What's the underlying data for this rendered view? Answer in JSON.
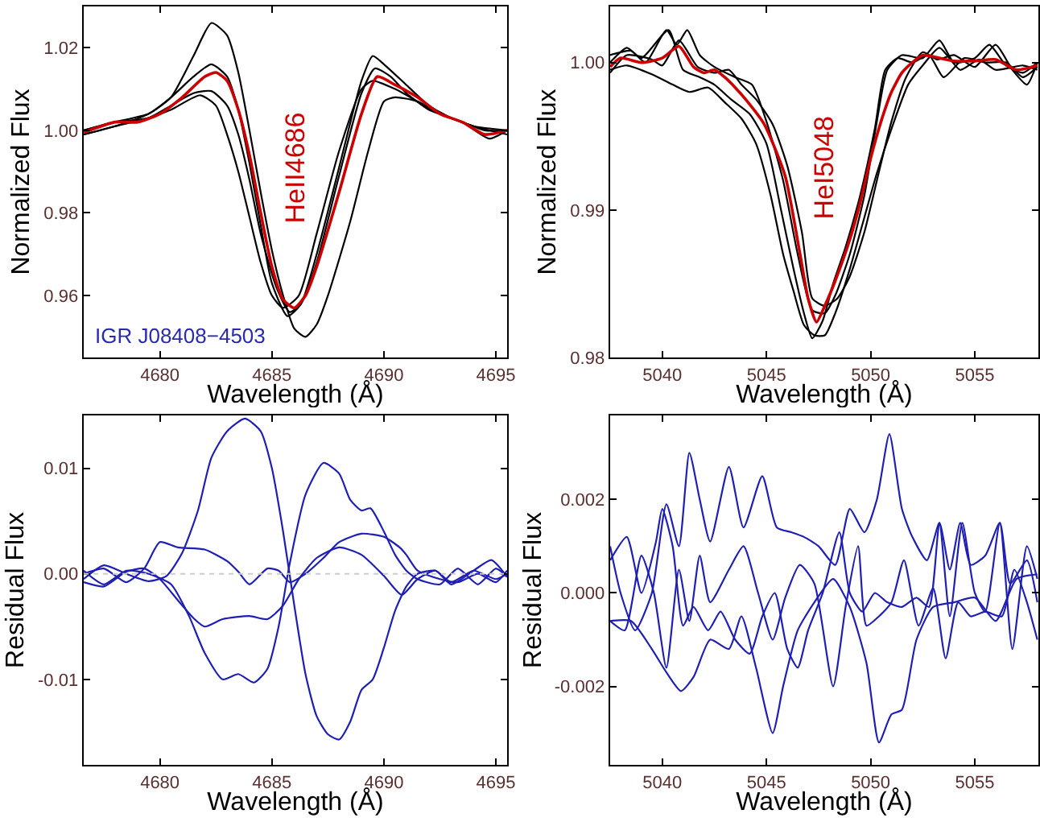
{
  "chart_data": [
    {
      "type": "line",
      "xlabel": "Wavelength (Å)",
      "ylabel": "Normalized Flux",
      "xlim": [
        4676.6,
        4695.5
      ],
      "ylim": [
        0.945,
        1.03
      ],
      "xticks": [
        4680,
        4685,
        4690,
        4695
      ],
      "yticks": [
        {
          "value": 0.96,
          "label": "0.96"
        },
        {
          "value": 0.98,
          "label": "0.98"
        },
        {
          "value": 1.0,
          "label": "1.00"
        },
        {
          "value": 1.02,
          "label": "1.02"
        }
      ],
      "annotations": [
        "HeII4686",
        "IGR J08408−4503"
      ],
      "series": [
        {
          "color": "#000000",
          "x": [
            4676.6,
            4678,
            4679.5,
            4680.5,
            4681.5,
            4682.3,
            4683,
            4683.5,
            4684,
            4684.5,
            4685,
            4685.5,
            4686,
            4686.5,
            4687,
            4687.5,
            4688.5,
            4689.3,
            4690,
            4690.5,
            4691.5,
            4692.5,
            4693.5,
            4694.5,
            4695.5
          ],
          "values": [
            0.999,
            1.001,
            1.004,
            1.008,
            1.018,
            1.026,
            1.023,
            1.014,
            1.0,
            0.985,
            0.971,
            0.96,
            0.952,
            0.95,
            0.953,
            0.96,
            0.978,
            0.995,
            1.007,
            1.008,
            1.007,
            1.004,
            1.002,
            1.0,
            1.0
          ]
        },
        {
          "color": "#000000",
          "x": [
            4676.6,
            4678,
            4679.5,
            4680.5,
            4681.5,
            4682.3,
            4683,
            4683.5,
            4684,
            4684.5,
            4685,
            4685.7,
            4686.3,
            4687,
            4688,
            4689,
            4689.5,
            4690,
            4691,
            4692,
            4693,
            4694,
            4695.5
          ],
          "values": [
            1.0,
            1.002,
            1.004,
            1.008,
            1.013,
            1.016,
            1.013,
            1.005,
            0.992,
            0.977,
            0.963,
            0.955,
            0.958,
            0.97,
            0.991,
            1.012,
            1.018,
            1.016,
            1.011,
            1.006,
            1.003,
            1.001,
            0.999
          ]
        },
        {
          "color": "#000000",
          "x": [
            4676.6,
            4678,
            4679.5,
            4680.5,
            4681.5,
            4682.3,
            4683,
            4683.5,
            4684,
            4684.5,
            4685.2,
            4685.8,
            4686.3,
            4687,
            4688,
            4689,
            4689.6,
            4690.3,
            4691,
            4692,
            4693,
            4694,
            4695.5
          ],
          "values": [
            1.0,
            1.002,
            1.003,
            1.006,
            1.009,
            1.0095,
            1.006,
            0.999,
            0.988,
            0.975,
            0.962,
            0.956,
            0.958,
            0.968,
            0.989,
            1.009,
            1.015,
            1.013,
            1.009,
            1.005,
            1.003,
            1.001,
            1.0
          ]
        },
        {
          "color": "#000000",
          "x": [
            4676.6,
            4678,
            4679.5,
            4680.5,
            4681.8,
            4682.5,
            4683,
            4683.5,
            4684,
            4684.5,
            4685,
            4685.5,
            4686.2,
            4687,
            4688,
            4689,
            4689.5,
            4690.5,
            4691.5,
            4692.5,
            4693.5,
            4694.7,
            4695.5
          ],
          "values": [
            0.999,
            1.001,
            1.003,
            1.005,
            1.0085,
            1.006,
            0.999,
            0.99,
            0.979,
            0.968,
            0.96,
            0.957,
            0.96,
            0.975,
            0.995,
            1.01,
            1.012,
            1.01,
            1.007,
            1.004,
            1.002,
            0.998,
            1.0
          ]
        },
        {
          "color": "#cc0000",
          "x": [
            4676.6,
            4678,
            4679,
            4680,
            4681,
            4682,
            4682.5,
            4683,
            4683.5,
            4684,
            4684.5,
            4685,
            4685.5,
            4686,
            4686.5,
            4687,
            4688,
            4689,
            4689.7,
            4690.5,
            4691.5,
            4692.5,
            4693.5,
            4694.5,
            4695.5
          ],
          "values": [
            0.9995,
            1.002,
            1.002,
            1.004,
            1.008,
            1.013,
            1.014,
            1.012,
            1.005,
            0.994,
            0.98,
            0.967,
            0.959,
            0.957,
            0.96,
            0.967,
            0.985,
            1.004,
            1.013,
            1.011,
            1.008,
            1.004,
            1.002,
            0.999,
            1.0
          ]
        }
      ]
    },
    {
      "type": "line",
      "xlabel": "Wavelength (Å)",
      "ylabel": "Normalized Flux",
      "xlim": [
        5037.5,
        5058.05
      ],
      "ylim": [
        0.98,
        1.0038
      ],
      "xticks": [
        5040,
        5045,
        5050,
        5055
      ],
      "yticks": [
        {
          "value": 0.98,
          "label": "0.98"
        },
        {
          "value": 0.99,
          "label": "0.99"
        },
        {
          "value": 1.0,
          "label": "1.00"
        }
      ],
      "annotations": [
        "HeI5048"
      ],
      "series": [
        {
          "color": "#000000",
          "x": [
            5037.5,
            5038.5,
            5039.2,
            5040.2,
            5040.7,
            5041.2,
            5041.8,
            5042.5,
            5043.5,
            5044.3,
            5045,
            5045.8,
            5046.5,
            5047.2,
            5047.8,
            5048.3,
            5049,
            5049.7,
            5050.3,
            5050.8,
            5051.5,
            5052.5,
            5053.3,
            5054,
            5055,
            5055.7,
            5056.5,
            5057.3,
            5058
          ],
          "values": [
            1.0005,
            1.0008,
            1.0,
            1.0022,
            1.0012,
            1.0022,
            1.0005,
            0.9997,
            0.999,
            0.9985,
            0.996,
            0.992,
            0.987,
            0.9832,
            0.983,
            0.9842,
            0.987,
            0.991,
            0.996,
            0.9995,
            1.0005,
            1.0003,
            1.0015,
            1.0,
            1.0003,
            1.0012,
            0.9998,
            0.9993,
            1.0
          ]
        },
        {
          "color": "#000000",
          "x": [
            5037.5,
            5038.3,
            5039,
            5040.3,
            5041,
            5041.8,
            5042.5,
            5043.3,
            5044.2,
            5045,
            5045.7,
            5046.3,
            5046.8,
            5047.2,
            5047.7,
            5048.2,
            5048.8,
            5049.5,
            5050.2,
            5050.7,
            5051.3,
            5052,
            5052.8,
            5053.5,
            5054.5,
            5055.5,
            5056.5,
            5057.3,
            5058
          ],
          "values": [
            1.0,
            1.001,
            1.0003,
            1.0022,
            0.9995,
            0.999,
            0.9985,
            0.9975,
            0.9965,
            0.9945,
            0.99,
            0.986,
            0.983,
            0.9813,
            0.9825,
            0.985,
            0.9875,
            0.991,
            0.9955,
            0.9995,
            1.0003,
            1.0,
            1.0005,
            0.999,
            1.0003,
            1.0,
            1.0,
            0.999,
            0.9997
          ]
        },
        {
          "color": "#000000",
          "x": [
            5037.5,
            5038.3,
            5039.5,
            5040.5,
            5041.3,
            5042.2,
            5043,
            5043.8,
            5044.5,
            5045.2,
            5045.8,
            5046.3,
            5046.8,
            5047.3,
            5047.8,
            5048.3,
            5049,
            5049.7,
            5050.3,
            5051,
            5051.8,
            5052.5,
            5053.3,
            5054.3,
            5055.2,
            5056,
            5057.3,
            5058
          ],
          "values": [
            0.9995,
            0.9998,
            0.9992,
            0.9985,
            0.998,
            0.9983,
            0.9973,
            0.9962,
            0.9945,
            0.991,
            0.987,
            0.9845,
            0.9822,
            0.9815,
            0.9815,
            0.983,
            0.986,
            0.9895,
            0.9925,
            0.9955,
            0.9985,
            0.9998,
            1.001,
            0.9995,
            1.0002,
            0.9995,
            0.9998,
            0.9995
          ]
        },
        {
          "color": "#000000",
          "x": [
            5037.5,
            5038.3,
            5039.5,
            5040,
            5040.8,
            5041.7,
            5042.5,
            5043.2,
            5043.8,
            5044.5,
            5045.3,
            5046,
            5046.7,
            5047.2,
            5047.8,
            5048.4,
            5049,
            5049.7,
            5050.3,
            5051,
            5051.7,
            5052.5,
            5053.2,
            5054,
            5055,
            5056,
            5056.8,
            5057.5,
            5058
          ],
          "values": [
            0.9993,
            1.0005,
            1.0002,
            0.9998,
            1.0015,
            0.9997,
            0.9993,
            0.9995,
            0.9985,
            0.9975,
            0.9958,
            0.993,
            0.9885,
            0.984,
            0.9835,
            0.984,
            0.9855,
            0.9885,
            0.992,
            0.996,
            0.999,
            1.0007,
            1.0002,
            1.0005,
            0.9997,
            1.0012,
            0.9995,
            0.9985,
            1.0
          ]
        },
        {
          "color": "#cc0000",
          "x": [
            5037.5,
            5038,
            5039,
            5040,
            5040.8,
            5041.5,
            5042,
            5042.5,
            5043,
            5043.5,
            5044,
            5044.9,
            5045.9,
            5046.6,
            5047,
            5047.4,
            5047.8,
            5048.3,
            5049,
            5049.5,
            5050,
            5050.5,
            5051,
            5051.5,
            5052,
            5052.5,
            5053,
            5054,
            5055,
            5056,
            5057,
            5058
          ],
          "values": [
            0.9997,
            1.0003,
            1.0,
            1.0003,
            1.0011,
            0.9997,
            0.9993,
            0.9995,
            0.999,
            0.9983,
            0.9975,
            0.9958,
            0.9923,
            0.9871,
            0.984,
            0.9824,
            0.9835,
            0.9852,
            0.988,
            0.9905,
            0.9935,
            0.996,
            0.998,
            0.9993,
            1.0,
            1.0005,
            1.0004,
            1.0001,
            1.0001,
            1.0002,
            0.9995,
            0.9998
          ]
        }
      ]
    },
    {
      "type": "line",
      "xlabel": "Wavelength (Å)",
      "ylabel": "Residual Flux",
      "xlim": [
        4676.6,
        4695.5
      ],
      "ylim": [
        -0.0181,
        0.015
      ],
      "xticks": [
        4680,
        4685,
        4690,
        4695
      ],
      "yticks": [
        {
          "value": -0.01,
          "label": "-0.01"
        },
        {
          "value": 0,
          "label": "0.00"
        },
        {
          "value": 0.01,
          "label": "0.01"
        }
      ],
      "ref_lines": [
        {
          "axis": "y",
          "value": 0,
          "color": "#cccccc",
          "line_style": "dotted"
        }
      ],
      "series": [
        {
          "color": "#1f1fb4",
          "x": [
            4676.6,
            4677.5,
            4678.5,
            4679.5,
            4680.3,
            4681,
            4681.7,
            4682.3,
            4683,
            4683.8,
            4684.5,
            4685,
            4685.5,
            4686,
            4686.5,
            4687,
            4687.5,
            4688,
            4688.5,
            4689,
            4689.5,
            4690,
            4690.5,
            4691,
            4691.5,
            4692.3,
            4693,
            4694,
            4695,
            4695.5
          ],
          "values": [
            -0.0005,
            0.0008,
            0.0,
            -0.0007,
            -0.0002,
            0.002,
            0.006,
            0.011,
            0.0135,
            0.0147,
            0.0135,
            0.01,
            0.004,
            -0.003,
            -0.0095,
            -0.0135,
            -0.0152,
            -0.0157,
            -0.014,
            -0.011,
            -0.01,
            -0.007,
            -0.0035,
            -0.0012,
            0.0,
            0.0003,
            -0.0008,
            0.0003,
            -0.0005,
            0.0
          ]
        },
        {
          "color": "#1f1fb4",
          "x": [
            4676.6,
            4677.5,
            4678.5,
            4679.5,
            4680.5,
            4681.3,
            4682,
            4682.8,
            4683.5,
            4684.2,
            4684.8,
            4685.3,
            4685.8,
            4686.5,
            4687.3,
            4688,
            4688.5,
            4689,
            4689.4,
            4690,
            4690.5,
            4691,
            4691.5,
            4692.5,
            4693.3,
            4694.2,
            4695,
            4695.5
          ],
          "values": [
            0.0003,
            -0.001,
            0.0003,
            0.0,
            -0.001,
            -0.004,
            -0.0075,
            -0.01,
            -0.0095,
            -0.0103,
            -0.009,
            -0.005,
            0.001,
            0.0075,
            0.0105,
            0.0095,
            0.007,
            0.006,
            0.0062,
            0.004,
            0.0018,
            0.0003,
            -0.0005,
            -0.001,
            0.0005,
            -0.001,
            0.0005,
            -0.0003
          ]
        },
        {
          "color": "#1f1fb4",
          "x": [
            4676.6,
            4677.5,
            4678.5,
            4679.3,
            4680,
            4680.8,
            4682,
            4683,
            4683.5,
            4684,
            4684.8,
            4685.3,
            4685.8,
            4686.5,
            4687.3,
            4688,
            4689,
            4690,
            4690.7,
            4691,
            4691.5,
            4692.5,
            4693.3,
            4694.2,
            4695,
            4695.5
          ],
          "values": [
            0.0,
            0.0005,
            -0.0008,
            0.0005,
            0.003,
            0.0025,
            0.0023,
            0.0012,
            0.0002,
            -0.001,
            0.0005,
            0.0003,
            -0.0008,
            0.0,
            0.0015,
            0.003,
            0.0038,
            0.0035,
            0.0025,
            0.0018,
            0.0003,
            -0.0005,
            -0.0008,
            0.0,
            -0.0008,
            0.0003
          ]
        },
        {
          "color": "#1f1fb4",
          "x": [
            4676.6,
            4677.5,
            4678.5,
            4679.3,
            4680,
            4680.8,
            4681.5,
            4682,
            4682.8,
            4684,
            4684.8,
            4685.5,
            4686.2,
            4687,
            4688,
            4689,
            4690,
            4690.8,
            4691.5,
            4692.3,
            4693,
            4694,
            4694.8,
            4695.5
          ],
          "values": [
            -0.0008,
            -0.0012,
            0.0002,
            0.0005,
            -0.0005,
            -0.0025,
            -0.0042,
            -0.005,
            -0.0043,
            -0.004,
            -0.0043,
            -0.003,
            -0.0005,
            0.0015,
            0.0025,
            0.0018,
            -0.0002,
            -0.002,
            -0.0005,
            0.0003,
            -0.001,
            0.0003,
            0.0013,
            -0.0003
          ]
        }
      ]
    },
    {
      "type": "line",
      "xlabel": "Wavelength (Å)",
      "ylabel": "Residual Flux",
      "xlim": [
        5037.5,
        5058.05
      ],
      "ylim": [
        -0.00368,
        0.0038
      ],
      "xticks": [
        5040,
        5045,
        5050,
        5055
      ],
      "yticks": [
        {
          "value": -0.002,
          "label": "-0.002"
        },
        {
          "value": 0,
          "label": "0.000"
        },
        {
          "value": 0.002,
          "label": "0.002"
        }
      ],
      "series": [
        {
          "color": "#1f1fb4",
          "x": [
            5037.5,
            5038,
            5038.7,
            5039.5,
            5040.2,
            5040.8,
            5041.3,
            5041.8,
            5042.3,
            5043.2,
            5043.9,
            5044.8,
            5045.5,
            5046.2,
            5046.8,
            5047.5,
            5048.3,
            5049,
            5049.7,
            5050.3,
            5050.9,
            5051.5,
            5052,
            5052.7,
            5053.3,
            5053.8,
            5054.3,
            5054.8,
            5055.5,
            5056.2,
            5056.7,
            5057.5,
            5058
          ],
          "values": [
            0.001,
            0.0,
            -0.0008,
            0.0,
            0.0019,
            0.001,
            0.003,
            0.002,
            0.0011,
            0.0027,
            0.0014,
            0.0025,
            0.0014,
            0.0013,
            0.0012,
            0.001,
            0.0006,
            0.0018,
            0.0013,
            0.002,
            0.0034,
            0.0018,
            0.0012,
            0.0007,
            0.0015,
            0.0005,
            0.0015,
            0.0006,
            0.0008,
            0.0015,
            0.0002,
            0.0007,
            -0.0002
          ]
        },
        {
          "color": "#1f1fb4",
          "x": [
            5037.5,
            5038.5,
            5039.5,
            5040.2,
            5040.9,
            5041.5,
            5042.3,
            5043.2,
            5043.8,
            5044.5,
            5045.3,
            5045.8,
            5046.5,
            5047.3,
            5048.2,
            5049,
            5049.8,
            5050.4,
            5051,
            5051.5,
            5052.2,
            5053,
            5054,
            5055,
            5056,
            5057,
            5058
          ],
          "values": [
            -0.0006,
            -0.0006,
            -0.0012,
            -0.0017,
            -0.0021,
            -0.0018,
            -0.001,
            -0.0012,
            -0.0005,
            -0.0016,
            -0.003,
            -0.002,
            -0.0008,
            -0.0002,
            0.0003,
            -0.0003,
            -0.0015,
            -0.0032,
            -0.0026,
            -0.0025,
            -0.001,
            -0.0003,
            -0.0002,
            -0.0001,
            -0.0006,
            0.0003,
            0.0004
          ]
        },
        {
          "color": "#1f1fb4",
          "x": [
            5037.5,
            5038.2,
            5039,
            5039.6,
            5040.2,
            5040.8,
            5041.3,
            5041.8,
            5042.3,
            5043.2,
            5043.9,
            5044.6,
            5045.3,
            5045.9,
            5046.6,
            5047.3,
            5048.2,
            5048.8,
            5049.4,
            5049.8,
            5050.4,
            5051,
            5051.6,
            5052.3,
            5053,
            5053.6,
            5054.2,
            5054.8,
            5055.5,
            5056.3,
            5056.9,
            5057.5,
            5058
          ],
          "values": [
            -0.0006,
            -0.0008,
            0.0008,
            0.0,
            -0.0016,
            0.0005,
            -0.0006,
            0.0008,
            -0.0002,
            0.0005,
            0.001,
            0.0,
            -0.001,
            -0.0001,
            0.0006,
            0.0002,
            -0.002,
            -0.0003,
            0.001,
            -0.0007,
            -0.0005,
            -0.0002,
            0.0007,
            -0.0007,
            0.0001,
            -0.0014,
            -0.0002,
            -0.0005,
            -0.0004,
            -0.0005,
            0.0005,
            -0.0002,
            -0.001
          ]
        },
        {
          "color": "#1f1fb4",
          "x": [
            5037.5,
            5038.3,
            5039,
            5039.7,
            5040,
            5040.5,
            5041,
            5041.5,
            5042.2,
            5042.8,
            5043.5,
            5044.2,
            5044.8,
            5045.4,
            5046,
            5046.5,
            5047,
            5047.7,
            5048.5,
            5049,
            5049.6,
            5050.2,
            5050.8,
            5051.5,
            5052.2,
            5052.8,
            5053.3,
            5053.8,
            5054.4,
            5055,
            5055.5,
            5056.2,
            5056.8,
            5057.5,
            5058
          ],
          "values": [
            0.0007,
            0.0012,
            0.0,
            0.0011,
            0.0018,
            0.001,
            -0.0007,
            -0.0003,
            -0.0008,
            -0.0004,
            -0.001,
            -0.0013,
            -0.0005,
            0.0,
            -0.0012,
            -0.0016,
            -0.0008,
            0.0,
            0.0013,
            0.0,
            -0.0004,
            0.0,
            -0.0002,
            -0.0003,
            -0.0001,
            -0.0003,
            0.0015,
            -0.0005,
            0.0015,
            0.0,
            -0.0004,
            0.0015,
            -0.0012,
            0.001,
            0.0003
          ]
        }
      ]
    }
  ]
}
